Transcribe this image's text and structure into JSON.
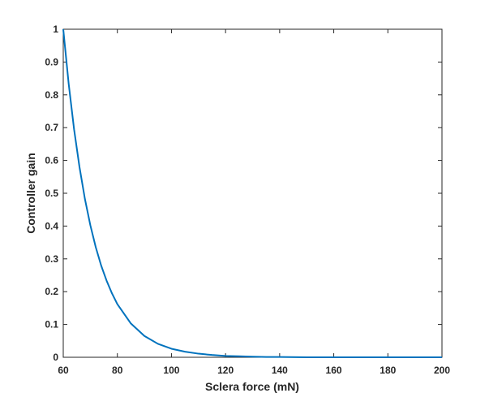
{
  "chart_data": {
    "type": "line",
    "x_label": "Sclera force (mN)",
    "y_label": "Controller gain",
    "x": [
      60,
      62,
      64,
      66,
      68,
      70,
      72,
      74,
      76,
      78,
      80,
      85,
      90,
      95,
      100,
      105,
      110,
      115,
      120,
      125,
      130,
      135,
      140,
      150,
      160,
      170,
      180,
      190,
      200
    ],
    "series": [
      {
        "color": "#0072bd",
        "values": [
          1,
          0.834,
          0.695,
          0.58,
          0.483,
          0.403,
          0.336,
          0.28,
          0.234,
          0.195,
          0.162,
          0.103,
          0.065,
          0.041,
          0.026,
          0.017,
          0.011,
          0.007,
          0.004,
          0.003,
          0.002,
          0.001,
          0.001,
          0,
          0,
          0,
          0,
          0,
          0
        ]
      }
    ],
    "xlim": [
      60,
      200
    ],
    "ylim": [
      0,
      1
    ],
    "xticks": [
      60,
      80,
      100,
      120,
      140,
      160,
      180,
      200
    ],
    "yticks": [
      0,
      0.1,
      0.2,
      0.3,
      0.4,
      0.5,
      0.6,
      0.7,
      0.8,
      0.9,
      1
    ]
  }
}
